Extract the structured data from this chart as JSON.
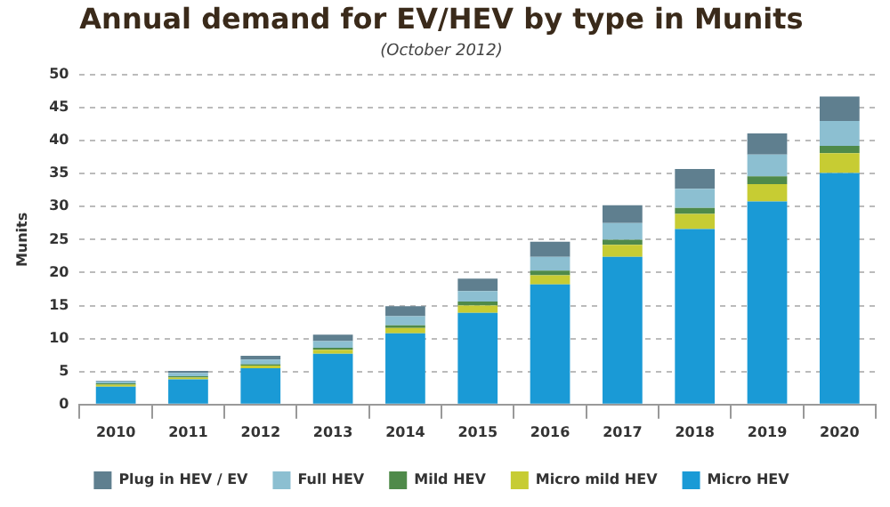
{
  "chart_data": {
    "type": "bar",
    "title": "Annual demand for EV/HEV by type in Munits",
    "subtitle": "(October 2012)",
    "ylabel": "Munits",
    "categories": [
      "2010",
      "2011",
      "2012",
      "2013",
      "2014",
      "2015",
      "2016",
      "2017",
      "2018",
      "2019",
      "2020"
    ],
    "stacked": true,
    "ylim": [
      0,
      50
    ],
    "yticks": [
      0,
      5,
      10,
      15,
      20,
      25,
      30,
      35,
      40,
      45,
      50
    ],
    "grid": "y",
    "legend": "bottom",
    "series": [
      {
        "name": "Micro HEV",
        "color": "#1a9ad6",
        "values": [
          2.7,
          3.8,
          5.5,
          7.7,
          10.8,
          13.9,
          18.2,
          22.4,
          26.6,
          30.8,
          35.1
        ]
      },
      {
        "name": "Micro mild HEV",
        "color": "#c7cc33",
        "values": [
          0.3,
          0.3,
          0.4,
          0.6,
          0.8,
          1.1,
          1.4,
          1.8,
          2.3,
          2.6,
          3.0
        ]
      },
      {
        "name": "Mild HEV",
        "color": "#4f8a4a",
        "values": [
          0.2,
          0.2,
          0.2,
          0.3,
          0.4,
          0.6,
          0.7,
          0.8,
          0.9,
          1.2,
          1.1
        ]
      },
      {
        "name": "Full HEV",
        "color": "#8cbfd1",
        "values": [
          0.3,
          0.5,
          0.7,
          1.0,
          1.4,
          1.6,
          2.1,
          2.5,
          2.9,
          3.3,
          3.8
        ]
      },
      {
        "name": "Plug in HEV / EV",
        "color": "#5f7f8f",
        "values": [
          0.1,
          0.3,
          0.6,
          1.0,
          1.5,
          1.9,
          2.3,
          2.7,
          3.0,
          3.2,
          3.7
        ]
      }
    ]
  }
}
